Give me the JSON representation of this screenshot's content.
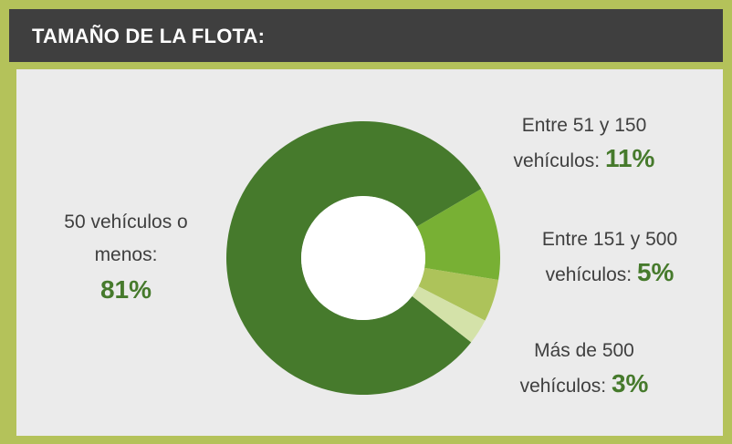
{
  "chart_data": {
    "type": "donut",
    "title": "TAMAÑO DE LA FLOTA:",
    "categories": [
      "50 vehículos o menos:",
      "Entre 51 y 150 vehículos:",
      "Entre 151 y 500 vehículos:",
      "Más de 500 vehículos:"
    ],
    "values": [
      81,
      11,
      5,
      3
    ],
    "value_labels": [
      "81%",
      "11%",
      "5%",
      "3%"
    ],
    "colors": [
      "#467a2c",
      "#78b034",
      "#adc35a",
      "#d4e2a9"
    ]
  }
}
